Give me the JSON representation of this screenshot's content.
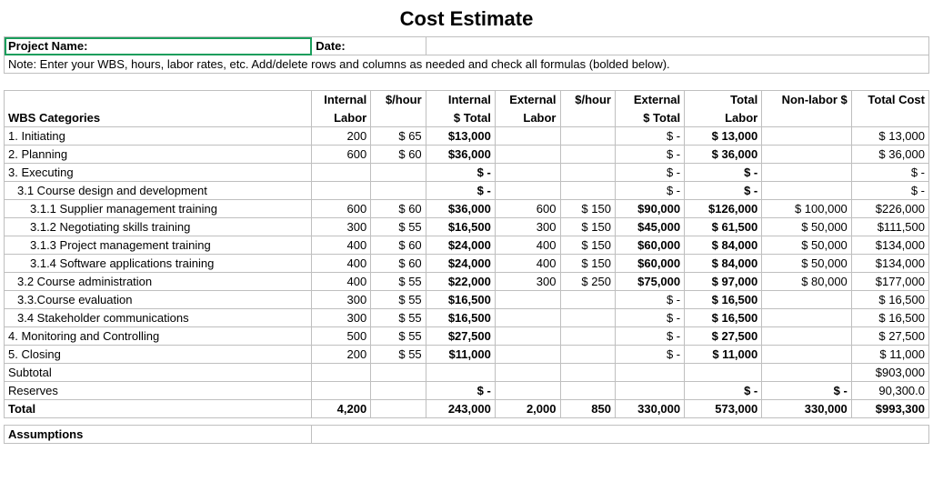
{
  "title": "Cost Estimate",
  "meta": {
    "project_label": "Project Name:",
    "date_label": "Date:",
    "note": "Note: Enter your WBS, hours, labor rates, etc. Add/delete rows and columns as needed and check all formulas (bolded below)."
  },
  "headers": {
    "wbs": "WBS Categories",
    "il1": "Internal",
    "il2": "Labor",
    "ir1": "$/hour",
    "ir2": "",
    "it1": "Internal",
    "it2": "$ Total",
    "el1": "External",
    "el2": "Labor",
    "er1": "$/hour",
    "er2": "",
    "et1": "External",
    "et2": "$ Total",
    "tl1": "Total",
    "tl2": "Labor",
    "nl1": "Non-labor $",
    "nl2": "",
    "tc1": "Total Cost",
    "tc2": ""
  },
  "rows": [
    {
      "label": "1. Initiating",
      "indent": 0,
      "il": "200",
      "ir": "$  65",
      "it": "$13,000",
      "it_b": true,
      "el": "",
      "er": "",
      "et": "$       -",
      "et_b": false,
      "tl": "$  13,000",
      "tl_b": true,
      "nl": "",
      "tc": "$  13,000"
    },
    {
      "label": "2. Planning",
      "indent": 0,
      "il": "600",
      "ir": "$  60",
      "it": "$36,000",
      "it_b": true,
      "el": "",
      "er": "",
      "et": "$       -",
      "et_b": false,
      "tl": "$  36,000",
      "tl_b": true,
      "nl": "",
      "tc": "$  36,000"
    },
    {
      "label": "3. Executing",
      "indent": 0,
      "il": "",
      "ir": "",
      "it": "$       -",
      "it_b": true,
      "el": "",
      "er": "",
      "et": "$       -",
      "et_b": false,
      "tl": "$        -",
      "tl_b": true,
      "nl": "",
      "tc": "$        -"
    },
    {
      "label": "3.1 Course design and development",
      "indent": 1,
      "il": "",
      "ir": "",
      "it": "$       -",
      "it_b": true,
      "el": "",
      "er": "",
      "et": "$       -",
      "et_b": false,
      "tl": "$        -",
      "tl_b": true,
      "nl": "",
      "tc": "$        -"
    },
    {
      "label": "3.1.1 Supplier management training",
      "indent": 2,
      "il": "600",
      "ir": "$  60",
      "it": "$36,000",
      "it_b": true,
      "el": "600",
      "er": "$ 150",
      "et": "$90,000",
      "et_b": true,
      "tl": "$126,000",
      "tl_b": true,
      "nl": "$  100,000",
      "tc": "$226,000"
    },
    {
      "label": "3.1.2 Negotiating skills training",
      "indent": 2,
      "il": "300",
      "ir": "$  55",
      "it": "$16,500",
      "it_b": true,
      "el": "300",
      "er": "$ 150",
      "et": "$45,000",
      "et_b": true,
      "tl": "$  61,500",
      "tl_b": true,
      "nl": "$    50,000",
      "tc": "$111,500"
    },
    {
      "label": "3.1.3  Project management training",
      "indent": 2,
      "il": "400",
      "ir": "$  60",
      "it": "$24,000",
      "it_b": true,
      "el": "400",
      "er": "$ 150",
      "et": "$60,000",
      "et_b": true,
      "tl": "$  84,000",
      "tl_b": true,
      "nl": "$    50,000",
      "tc": "$134,000"
    },
    {
      "label": "3.1.4 Software applications training",
      "indent": 2,
      "il": "400",
      "ir": "$  60",
      "it": "$24,000",
      "it_b": true,
      "el": "400",
      "er": "$ 150",
      "et": "$60,000",
      "et_b": true,
      "tl": "$  84,000",
      "tl_b": true,
      "nl": "$    50,000",
      "tc": "$134,000"
    },
    {
      "label": "3.2 Course administration",
      "indent": 1,
      "il": "400",
      "ir": "$  55",
      "it": "$22,000",
      "it_b": true,
      "el": "300",
      "er": "$ 250",
      "et": "$75,000",
      "et_b": true,
      "tl": "$  97,000",
      "tl_b": true,
      "nl": "$    80,000",
      "tc": "$177,000"
    },
    {
      "label": "3.3.Course evaluation",
      "indent": 1,
      "il": "300",
      "ir": "$  55",
      "it": "$16,500",
      "it_b": true,
      "el": "",
      "er": "",
      "et": "$       -",
      "et_b": false,
      "tl": "$  16,500",
      "tl_b": true,
      "nl": "",
      "tc": "$  16,500"
    },
    {
      "label": "3.4 Stakeholder communications",
      "indent": 1,
      "il": "300",
      "ir": "$  55",
      "it": "$16,500",
      "it_b": true,
      "el": "",
      "er": "",
      "et": "$       -",
      "et_b": false,
      "tl": "$  16,500",
      "tl_b": true,
      "nl": "",
      "tc": "$  16,500"
    },
    {
      "label": "4. Monitoring and Controlling",
      "indent": 0,
      "il": "500",
      "ir": "$  55",
      "it": "$27,500",
      "it_b": true,
      "el": "",
      "er": "",
      "et": "$       -",
      "et_b": false,
      "tl": "$  27,500",
      "tl_b": true,
      "nl": "",
      "tc": "$  27,500"
    },
    {
      "label": "5. Closing",
      "indent": 0,
      "il": "200",
      "ir": "$  55",
      "it": "$11,000",
      "it_b": true,
      "el": "",
      "er": "",
      "et": "$       -",
      "et_b": false,
      "tl": "$  11,000",
      "tl_b": true,
      "nl": "",
      "tc": "$  11,000"
    }
  ],
  "subtotal": {
    "label": "Subtotal",
    "tc": "$903,000"
  },
  "reserves": {
    "label": "Reserves",
    "it": "$       -",
    "tl": "$        -",
    "nl": "$           -",
    "tc": "90,300.0"
  },
  "total": {
    "label": "Total",
    "il": "4,200",
    "it": "243,000",
    "el": "2,000",
    "er": "850",
    "et": "330,000",
    "tl": "573,000",
    "nl": "330,000",
    "tc": "$993,300"
  },
  "assumptions_label": "Assumptions",
  "colors": {
    "grid": "#bfbfbf",
    "text": "#000000",
    "background": "#ffffff",
    "selection": "#1a9e5c"
  }
}
